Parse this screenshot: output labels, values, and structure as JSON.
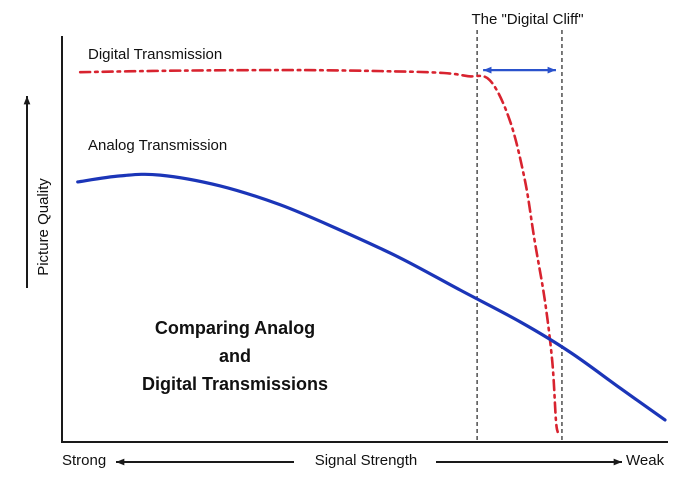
{
  "chart_data": {
    "type": "line",
    "title_lines": [
      "Comparing Analog",
      "and",
      "Digital Transmissions"
    ],
    "xlabel": "Signal Strength",
    "ylabel": "Picture Quality",
    "x_end_labels": {
      "left": "Strong",
      "right": "Weak"
    },
    "xlim": [
      0,
      100
    ],
    "ylim": [
      0,
      100
    ],
    "grid": false,
    "legend_position": "labels-near-curves",
    "annotations": {
      "cliff_label": "The \"Digital Cliff\"",
      "cliff_region_x": [
        68.5,
        82.5
      ],
      "cliff_arrow_y": 92.5,
      "cliff_arrow_color": "#2a52cc",
      "dashed_line_color": "#333333"
    },
    "series": [
      {
        "name": "Digital Transmission",
        "color": "#d8232f",
        "line_style": "dash-dot",
        "points": [
          [
            3,
            92
          ],
          [
            20,
            92.4
          ],
          [
            40,
            92.5
          ],
          [
            55,
            92.2
          ],
          [
            63,
            91.8
          ],
          [
            67,
            91
          ],
          [
            70.6,
            90
          ],
          [
            73.9,
            80
          ],
          [
            76.4,
            65
          ],
          [
            78,
            50
          ],
          [
            79.7,
            35
          ],
          [
            80.9,
            20
          ],
          [
            81.5,
            5.5
          ],
          [
            81.8,
            2.5
          ]
        ]
      },
      {
        "name": "Analog Transmission",
        "color": "#1b35b8",
        "line_style": "solid",
        "points": [
          [
            2.6,
            64.7
          ],
          [
            9.6,
            66.2
          ],
          [
            16.2,
            66.4
          ],
          [
            26.1,
            63.7
          ],
          [
            36,
            59
          ],
          [
            45.9,
            52.7
          ],
          [
            55.8,
            45.8
          ],
          [
            65.7,
            37.8
          ],
          [
            75.6,
            29.9
          ],
          [
            83.8,
            22.4
          ],
          [
            92.1,
            13.4
          ],
          [
            99.5,
            5.5
          ]
        ]
      }
    ],
    "axis_color": "#1a1a1a"
  }
}
